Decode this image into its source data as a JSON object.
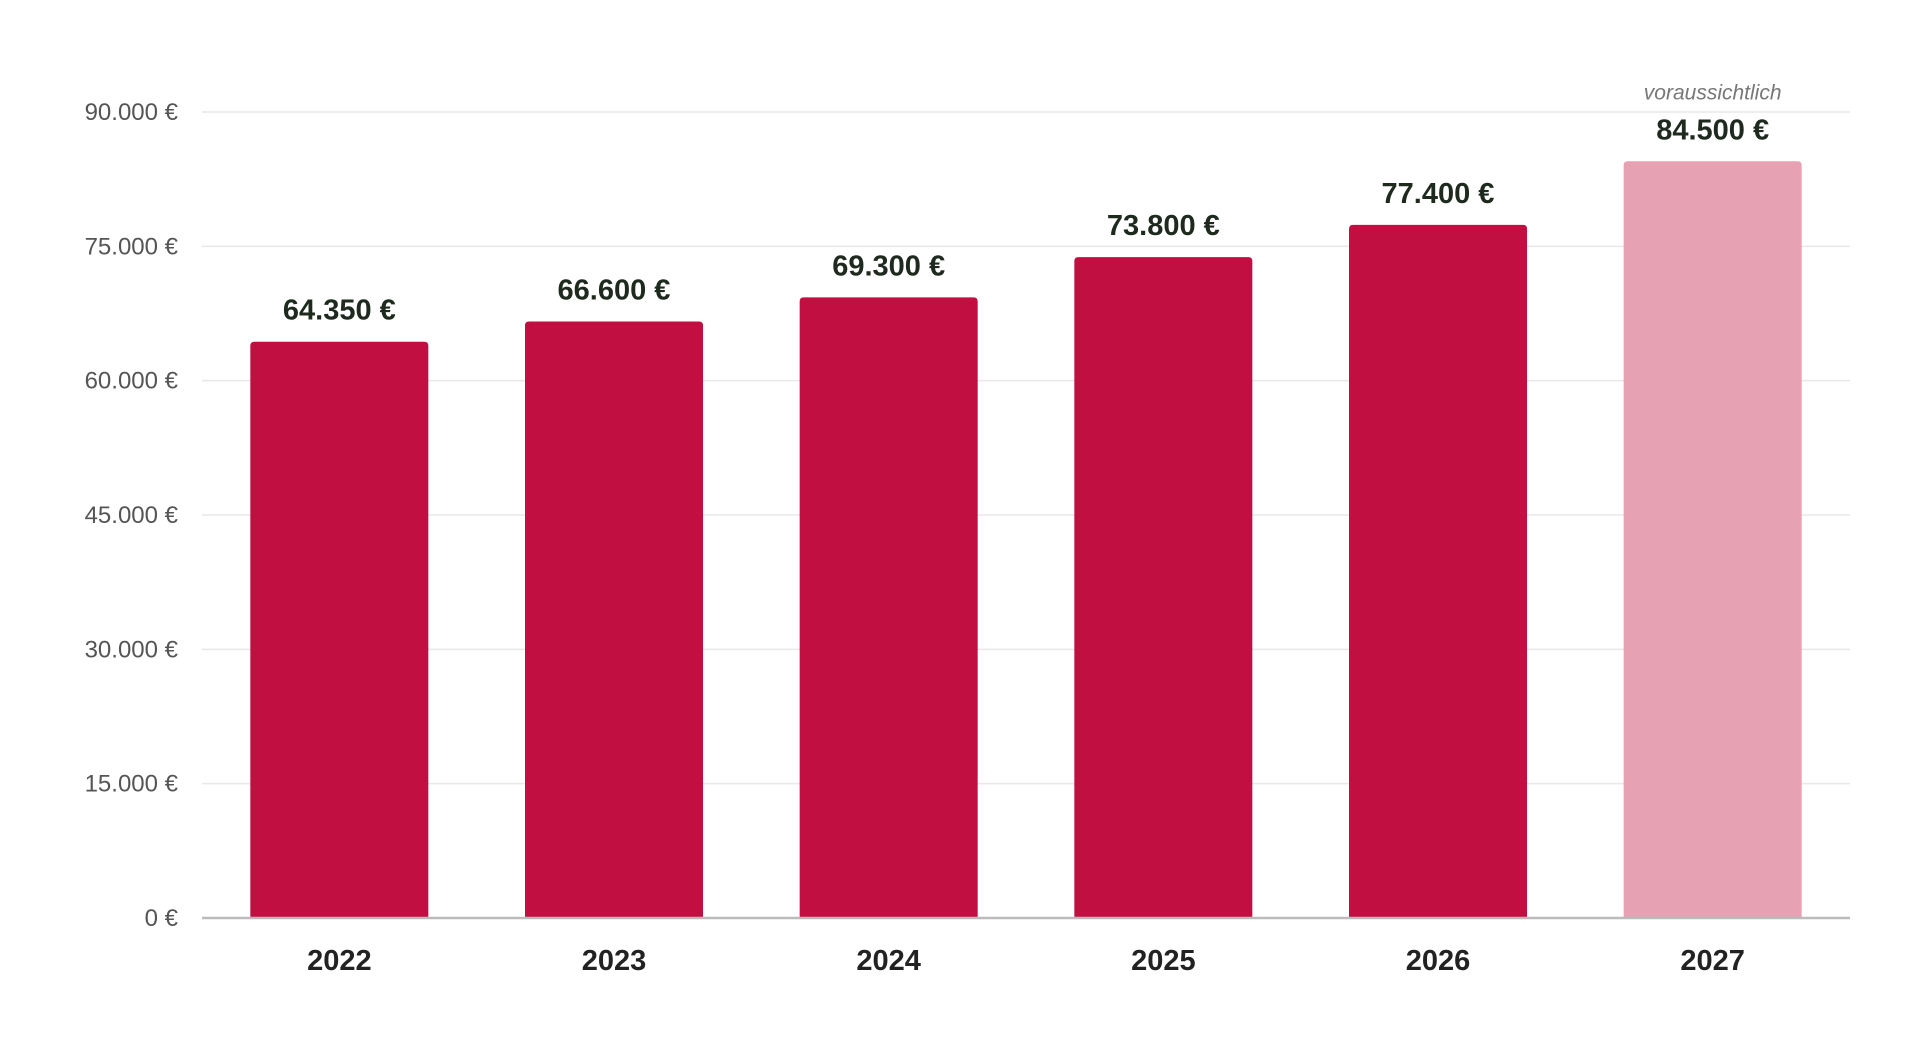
{
  "chart_data": {
    "type": "bar",
    "title": "",
    "xlabel": "",
    "ylabel": "",
    "categories": [
      "2022",
      "2023",
      "2024",
      "2025",
      "2026",
      "2027"
    ],
    "values": [
      64350,
      66600,
      69300,
      73800,
      77400,
      84500
    ],
    "value_labels": [
      "64.350 €",
      "66.600 €",
      "69.300 €",
      "73.800 €",
      "77.400 €",
      "84.500 €"
    ],
    "ylim": [
      0,
      90000
    ],
    "yticks": [
      0,
      15000,
      30000,
      45000,
      60000,
      75000,
      90000
    ],
    "ytick_labels": [
      "0 €",
      "15.000 €",
      "30.000 €",
      "45.000 €",
      "60.000 €",
      "75.000 €",
      "90.000 €"
    ],
    "grid": true,
    "legend": "none",
    "annotations": [
      {
        "category": "2027",
        "text": "voraussichtlich"
      }
    ],
    "colors": {
      "bar": "#c00f40",
      "bar_projected": "#e6a1b2",
      "gridline": "#e8e8e8",
      "axis": "#bbbbbb"
    },
    "projected_categories": [
      "2027"
    ]
  }
}
